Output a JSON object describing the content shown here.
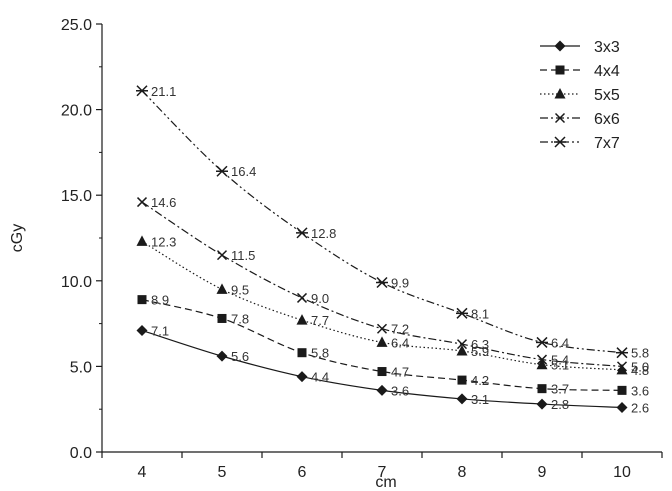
{
  "chart_data": {
    "type": "line",
    "title": "",
    "xlabel": "cm",
    "ylabel": "cGy",
    "x": [
      4,
      5,
      6,
      7,
      8,
      9,
      10
    ],
    "xlim": [
      3.5,
      10.5
    ],
    "ylim": [
      0,
      25
    ],
    "yticks": [
      "0.0",
      "5.0",
      "10.0",
      "15.0",
      "20.0",
      "25.0"
    ],
    "xticks": [
      "4",
      "5",
      "6",
      "7",
      "8",
      "9",
      "10"
    ],
    "grid": false,
    "legend_position": "top-right",
    "series": [
      {
        "name": "3x3",
        "marker": "diamond",
        "dash": "solid",
        "values": [
          7.1,
          5.6,
          4.4,
          3.6,
          3.1,
          2.8,
          2.6
        ],
        "labels": [
          "7.1",
          "5.6",
          "4.4",
          "3.6",
          "3.1",
          "2.8",
          "2.6"
        ]
      },
      {
        "name": "4x4",
        "marker": "square",
        "dash": "dashed",
        "values": [
          8.9,
          7.8,
          5.8,
          4.7,
          4.2,
          3.7,
          3.6
        ],
        "labels": [
          "8.9",
          "7.8",
          "5.8",
          "4.7",
          "4.2",
          "3.7",
          "3.6"
        ]
      },
      {
        "name": "5x5",
        "marker": "triangle",
        "dash": "dotted",
        "values": [
          12.3,
          9.5,
          7.7,
          6.4,
          5.9,
          5.1,
          4.8
        ],
        "labels": [
          "12.3",
          "9.5",
          "7.7",
          "6.4",
          "5.9",
          "5.1",
          "4.8"
        ]
      },
      {
        "name": "6x6",
        "marker": "x",
        "dash": "dashdot",
        "values": [
          14.6,
          11.5,
          9.0,
          7.2,
          6.3,
          5.4,
          5.0
        ],
        "labels": [
          "14.6",
          "11.5",
          "9.0",
          "7.2",
          "6.3",
          "5.4",
          "5.0"
        ]
      },
      {
        "name": "7x7",
        "marker": "star",
        "dash": "dashdotdot",
        "values": [
          21.1,
          16.4,
          12.8,
          9.9,
          8.1,
          6.4,
          5.8
        ],
        "labels": [
          "21.1",
          "16.4",
          "12.8",
          "9.9",
          "8.1",
          "6.4",
          "5.8"
        ]
      }
    ],
    "colors": {
      "line": "#1a1a1a",
      "axis": "#1a1a1a"
    }
  }
}
